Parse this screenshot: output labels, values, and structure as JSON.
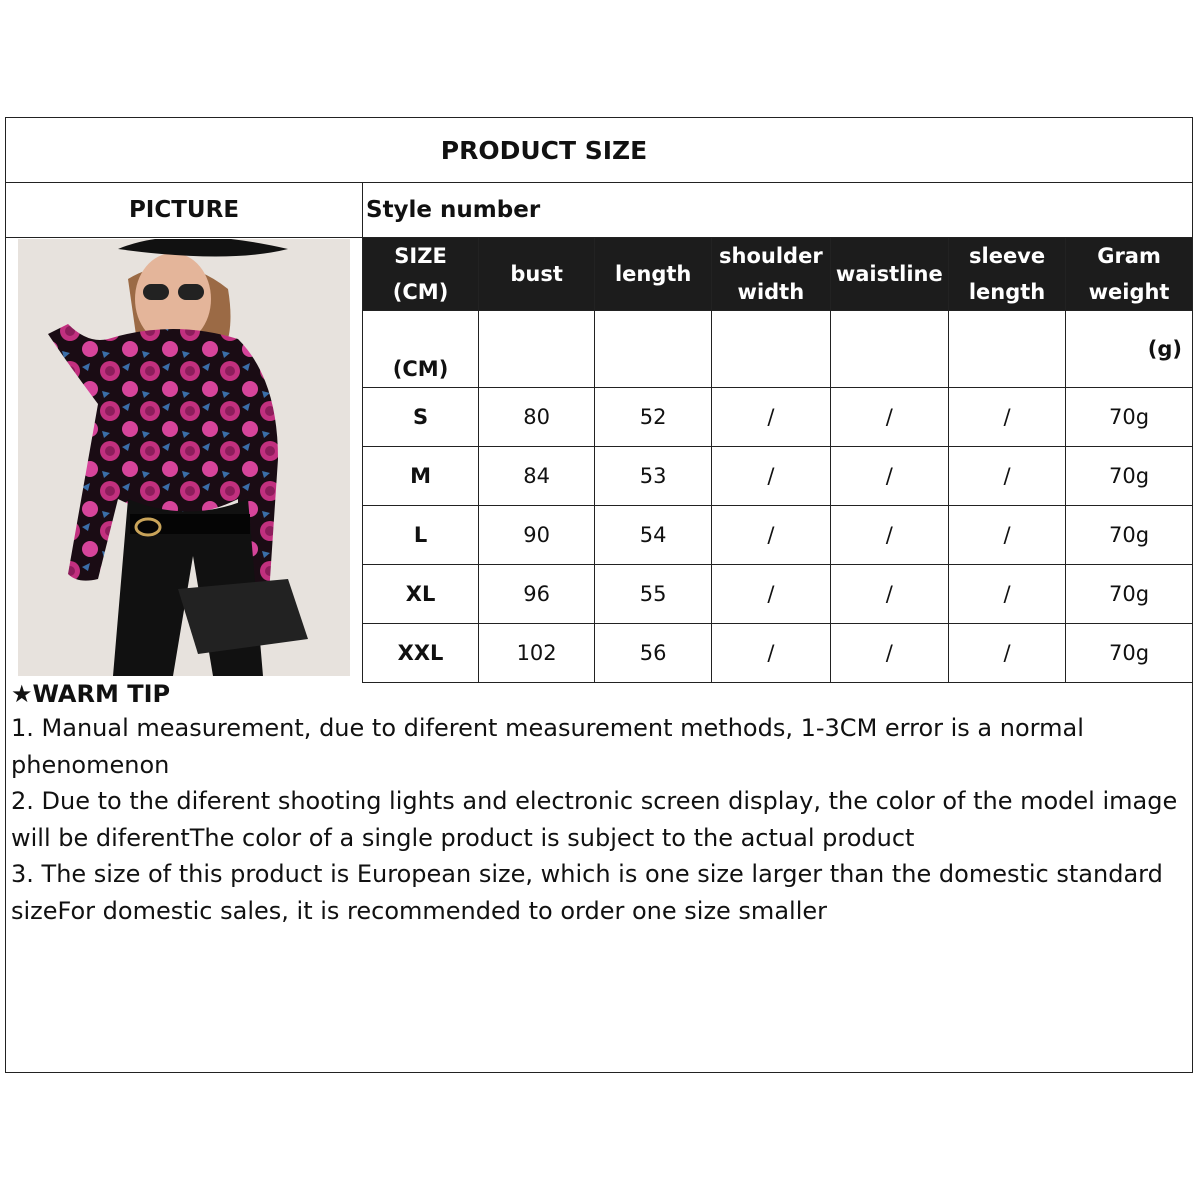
{
  "title": "PRODUCT SIZE",
  "picture_label": "PICTURE",
  "style_label": "Style number",
  "table": {
    "headers": [
      [
        "SIZE",
        "(CM)"
      ],
      [
        "bust"
      ],
      [
        "length"
      ],
      [
        "shoulder",
        "width"
      ],
      [
        "waistline"
      ],
      [
        "sleeve",
        "length"
      ],
      [
        "Gram",
        "weight"
      ]
    ],
    "units": [
      "(CM)",
      "",
      "",
      "",
      "",
      "",
      "(g)"
    ],
    "rows": [
      [
        "S",
        "80",
        "52",
        "/",
        "/",
        "/",
        "70g"
      ],
      [
        "M",
        "84",
        "53",
        "/",
        "/",
        "/",
        "70g"
      ],
      [
        "L",
        "90",
        "54",
        "/",
        "/",
        "/",
        "70g"
      ],
      [
        "XL",
        "96",
        "55",
        "/",
        "/",
        "/",
        "70g"
      ],
      [
        "XXL",
        "102",
        "56",
        "/",
        "/",
        "/",
        "70g"
      ]
    ]
  },
  "tips": {
    "heading": "★WARM TIP",
    "items": [
      "1. Manual measurement, due to diferent measurement methods, 1-3CM error is a normal phenomenon",
      "2. Due to the diferent shooting lights and electronic screen display, the color of the model image will be diferentThe color of a single product is subject to the actual product",
      "3. The size of this product is European size, which is one size larger than the domestic standard sizeFor domestic sales, it is recommended to order one size smaller"
    ]
  },
  "colors": {
    "header_bg": "#1c1c1c",
    "print_pink": "#c2307f"
  }
}
